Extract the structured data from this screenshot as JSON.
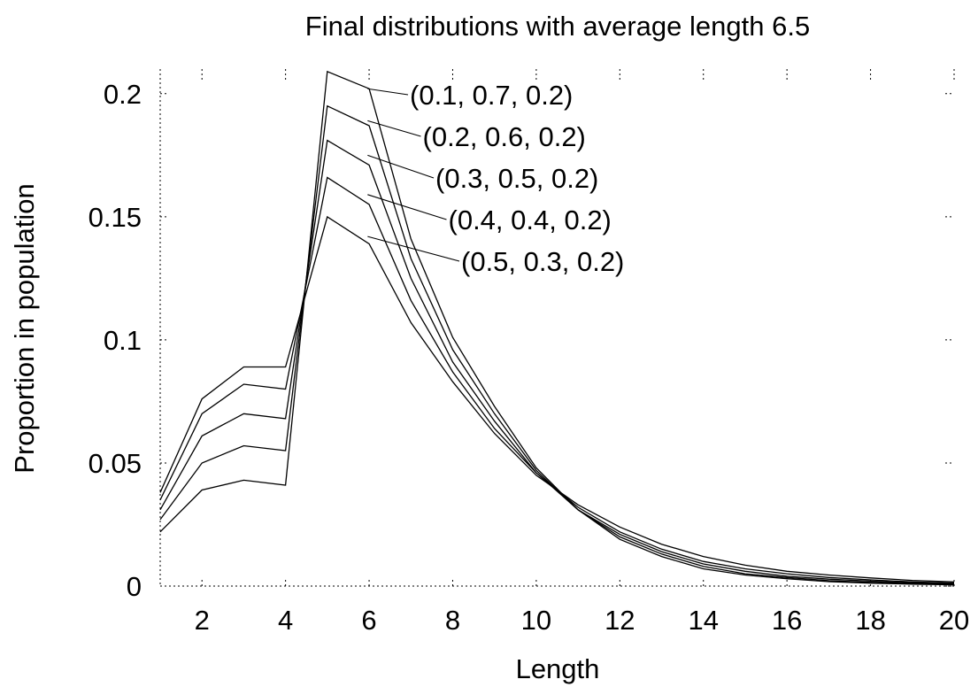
{
  "chart_data": {
    "type": "line",
    "title": "Final distributions with average length 6.5",
    "xlabel": "Length",
    "ylabel": "Proportion in population",
    "xlim": [
      1,
      20
    ],
    "ylim": [
      0,
      0.21
    ],
    "xticks": [
      2,
      4,
      6,
      8,
      10,
      12,
      14,
      16,
      18,
      20
    ],
    "yticks": [
      0,
      0.05,
      0.1,
      0.15,
      0.2
    ],
    "ytick_labels": [
      "0",
      "0.05",
      "0.1",
      "0.15",
      "0.2"
    ],
    "grid": "dotted tick stubs",
    "x": [
      1,
      2,
      3,
      4,
      5,
      6,
      7,
      8,
      9,
      10,
      11,
      12,
      13,
      14,
      15,
      16,
      17,
      18,
      19,
      20
    ],
    "series": [
      {
        "name": "(0.1, 0.7, 0.2)",
        "label_x": 5.9,
        "label_y": 0.202,
        "values": [
          0.022,
          0.039,
          0.043,
          0.041,
          0.209,
          0.202,
          0.141,
          0.101,
          0.073,
          0.048,
          0.031,
          0.019,
          0.012,
          0.007,
          0.0045,
          0.003,
          0.0018,
          0.0012,
          0.0008,
          0.0005
        ]
      },
      {
        "name": "(0.2, 0.6, 0.2)",
        "label_x": 5.9,
        "label_y": 0.189,
        "values": [
          0.027,
          0.05,
          0.057,
          0.055,
          0.195,
          0.187,
          0.133,
          0.096,
          0.07,
          0.047,
          0.031,
          0.02,
          0.013,
          0.008,
          0.005,
          0.0035,
          0.0022,
          0.0015,
          0.001,
          0.0007
        ]
      },
      {
        "name": "(0.3, 0.5, 0.2)",
        "label_x": 5.9,
        "label_y": 0.175,
        "values": [
          0.031,
          0.061,
          0.07,
          0.068,
          0.181,
          0.171,
          0.125,
          0.091,
          0.067,
          0.046,
          0.031,
          0.021,
          0.014,
          0.009,
          0.006,
          0.004,
          0.0028,
          0.002,
          0.0013,
          0.0009
        ]
      },
      {
        "name": "(0.4, 0.4, 0.2)",
        "label_x": 5.9,
        "label_y": 0.159,
        "values": [
          0.035,
          0.07,
          0.082,
          0.08,
          0.166,
          0.155,
          0.116,
          0.087,
          0.064,
          0.046,
          0.032,
          0.022,
          0.015,
          0.01,
          0.007,
          0.005,
          0.0035,
          0.0025,
          0.0017,
          0.0012
        ]
      },
      {
        "name": "(0.5, 0.3, 0.2)",
        "label_x": 5.9,
        "label_y": 0.142,
        "values": [
          0.038,
          0.076,
          0.089,
          0.089,
          0.15,
          0.139,
          0.107,
          0.083,
          0.062,
          0.045,
          0.033,
          0.024,
          0.017,
          0.012,
          0.0085,
          0.006,
          0.0045,
          0.0033,
          0.0023,
          0.0017
        ]
      }
    ]
  }
}
